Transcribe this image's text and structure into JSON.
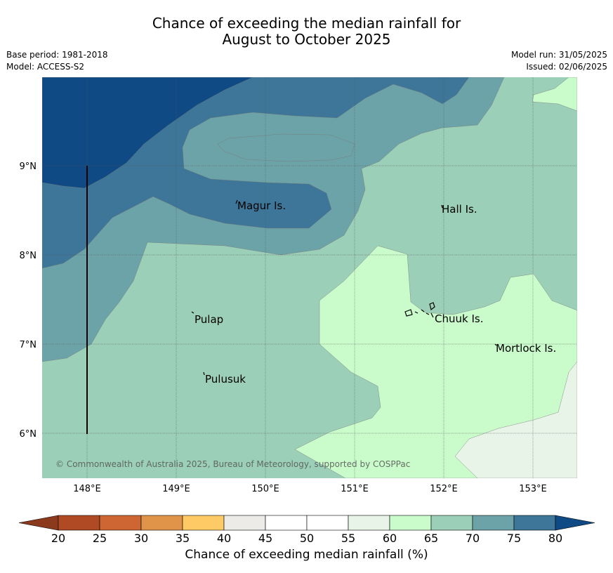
{
  "title_line1": "Chance of exceeding the median rainfall for",
  "title_line2": "August to October 2025",
  "meta_left": {
    "base_period": "Base period: 1981-2018",
    "model": "Model: ACCESS-S2"
  },
  "meta_right": {
    "model_run": "Model run: 31/05/2025",
    "issued": "Issued: 02/06/2025"
  },
  "map": {
    "lon_ticks": [
      "148°E",
      "149°E",
      "150°E",
      "151°E",
      "152°E",
      "153°E"
    ],
    "lat_ticks": [
      "9°N",
      "8°N",
      "7°N",
      "6°N"
    ],
    "places": [
      "Magur Is.",
      "Hall Is.",
      "Pulap",
      "Chuuk Is.",
      "Mortlock Is.",
      "Pulusuk"
    ],
    "copyright": "© Commonwealth of Australia 2025, Bureau of Meteorology, supported by COSPPac",
    "zone_colors": {
      "c80": "#0f4a85",
      "c75": "#3d7698",
      "c70": "#6ca3a8",
      "c65": "#9bcfb8",
      "c60": "#c9fbcb",
      "c55": "#e8f4e8"
    }
  },
  "colorbar": {
    "ticks": [
      "20",
      "25",
      "30",
      "35",
      "40",
      "45",
      "50",
      "55",
      "60",
      "65",
      "70",
      "75",
      "80"
    ],
    "colors": [
      "#8c3a1d",
      "#b04a25",
      "#cd6633",
      "#e0944a",
      "#fdca66",
      "#ecebe8",
      "#ffffff",
      "#ffffff",
      "#e8f4e8",
      "#c9fbcb",
      "#9bcfb8",
      "#6ca3a8",
      "#3d7698",
      "#0f4a85"
    ],
    "label": "Chance of exceeding median rainfall (%)"
  }
}
